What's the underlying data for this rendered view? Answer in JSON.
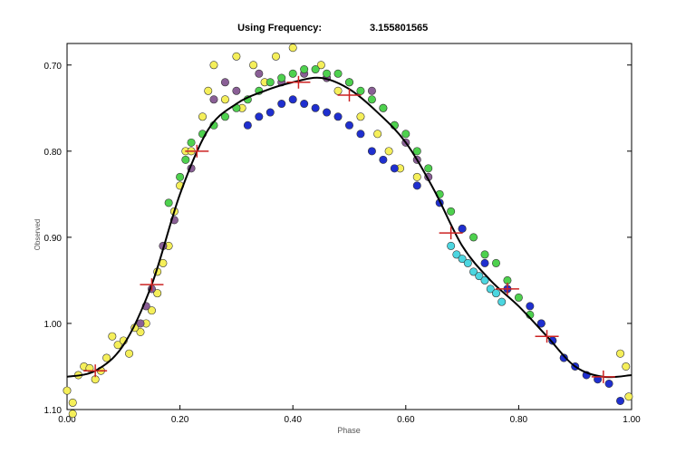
{
  "chart_data": {
    "type": "scatter",
    "title": "Using Frequency:",
    "title_value": "3.155801565",
    "xlabel": "Phase",
    "ylabel": "Observed",
    "xlim": [
      0.0,
      1.0
    ],
    "ylim": [
      1.1,
      0.675
    ],
    "y_inverted": true,
    "grid": false,
    "legend": "none",
    "x_ticks": [
      {
        "value": 0.0,
        "label": "0.00"
      },
      {
        "value": 0.2,
        "label": "0.20"
      },
      {
        "value": 0.4,
        "label": "0.40"
      },
      {
        "value": 0.6,
        "label": "0.60"
      },
      {
        "value": 0.8,
        "label": "0.80"
      },
      {
        "value": 1.0,
        "label": "1.00"
      }
    ],
    "y_ticks": [
      {
        "value": 0.7,
        "label": "0.70"
      },
      {
        "value": 0.8,
        "label": "0.80"
      },
      {
        "value": 0.9,
        "label": "0.90"
      },
      {
        "value": 1.0,
        "label": "1.00"
      },
      {
        "value": 1.1,
        "label": "1.10"
      }
    ],
    "colors": {
      "yellow": "#f5ef5a",
      "purple": "#8a5f96",
      "green": "#4ed14e",
      "blue": "#1f2fcf",
      "cyan": "#4cd6e0",
      "fit": "#000000",
      "markers": "#cc2222"
    },
    "series": [
      {
        "color": "#f5ef5a",
        "points": [
          [
            0.0,
            1.078
          ],
          [
            0.01,
            1.092
          ],
          [
            0.02,
            1.06
          ],
          [
            0.03,
            1.05
          ],
          [
            0.04,
            1.052
          ],
          [
            0.05,
            1.065
          ],
          [
            0.06,
            1.055
          ],
          [
            0.07,
            1.04
          ],
          [
            0.08,
            1.015
          ],
          [
            0.09,
            1.025
          ],
          [
            0.1,
            1.02
          ],
          [
            0.11,
            1.035
          ],
          [
            0.13,
            1.01
          ],
          [
            0.14,
            1.0
          ],
          [
            0.15,
            0.985
          ],
          [
            0.16,
            0.965
          ],
          [
            0.17,
            0.93
          ],
          [
            0.18,
            0.91
          ],
          [
            0.19,
            0.87
          ],
          [
            0.2,
            0.84
          ],
          [
            0.21,
            0.8
          ],
          [
            0.22,
            0.8
          ],
          [
            0.24,
            0.76
          ],
          [
            0.25,
            0.73
          ],
          [
            0.26,
            0.7
          ],
          [
            0.28,
            0.74
          ],
          [
            0.3,
            0.69
          ],
          [
            0.31,
            0.75
          ],
          [
            0.33,
            0.7
          ],
          [
            0.35,
            0.72
          ],
          [
            0.37,
            0.69
          ],
          [
            0.4,
            0.68
          ],
          [
            0.45,
            0.7
          ],
          [
            0.48,
            0.73
          ],
          [
            0.52,
            0.76
          ],
          [
            0.55,
            0.78
          ],
          [
            0.57,
            0.8
          ],
          [
            0.59,
            0.82
          ],
          [
            0.62,
            0.83
          ],
          [
            0.98,
            1.035
          ],
          [
            0.99,
            1.05
          ],
          [
            0.995,
            1.085
          ],
          [
            0.01,
            1.105
          ],
          [
            0.12,
            1.005
          ],
          [
            0.16,
            0.94
          ]
        ]
      },
      {
        "color": "#8a5f96",
        "points": [
          [
            0.13,
            1.0
          ],
          [
            0.14,
            0.98
          ],
          [
            0.15,
            0.96
          ],
          [
            0.17,
            0.91
          ],
          [
            0.19,
            0.88
          ],
          [
            0.22,
            0.82
          ],
          [
            0.26,
            0.74
          ],
          [
            0.28,
            0.72
          ],
          [
            0.3,
            0.73
          ],
          [
            0.34,
            0.71
          ],
          [
            0.38,
            0.72
          ],
          [
            0.42,
            0.71
          ],
          [
            0.46,
            0.715
          ],
          [
            0.5,
            0.72
          ],
          [
            0.54,
            0.73
          ],
          [
            0.56,
            0.75
          ],
          [
            0.58,
            0.77
          ],
          [
            0.6,
            0.79
          ],
          [
            0.62,
            0.81
          ],
          [
            0.64,
            0.83
          ]
        ]
      },
      {
        "color": "#4ed14e",
        "points": [
          [
            0.18,
            0.86
          ],
          [
            0.2,
            0.83
          ],
          [
            0.21,
            0.81
          ],
          [
            0.22,
            0.79
          ],
          [
            0.24,
            0.78
          ],
          [
            0.26,
            0.77
          ],
          [
            0.28,
            0.76
          ],
          [
            0.3,
            0.75
          ],
          [
            0.32,
            0.74
          ],
          [
            0.34,
            0.73
          ],
          [
            0.36,
            0.72
          ],
          [
            0.38,
            0.715
          ],
          [
            0.4,
            0.71
          ],
          [
            0.42,
            0.705
          ],
          [
            0.44,
            0.705
          ],
          [
            0.46,
            0.71
          ],
          [
            0.48,
            0.71
          ],
          [
            0.5,
            0.72
          ],
          [
            0.52,
            0.73
          ],
          [
            0.54,
            0.74
          ],
          [
            0.56,
            0.75
          ],
          [
            0.58,
            0.77
          ],
          [
            0.6,
            0.78
          ],
          [
            0.62,
            0.8
          ],
          [
            0.64,
            0.82
          ],
          [
            0.66,
            0.85
          ],
          [
            0.68,
            0.87
          ],
          [
            0.7,
            0.89
          ],
          [
            0.72,
            0.9
          ],
          [
            0.74,
            0.92
          ],
          [
            0.76,
            0.93
          ],
          [
            0.78,
            0.95
          ],
          [
            0.8,
            0.97
          ],
          [
            0.82,
            0.99
          ],
          [
            0.84,
            1.0
          ],
          [
            0.86,
            1.02
          ],
          [
            0.88,
            1.04
          ]
        ]
      },
      {
        "color": "#1f2fcf",
        "points": [
          [
            0.32,
            0.77
          ],
          [
            0.34,
            0.76
          ],
          [
            0.36,
            0.755
          ],
          [
            0.38,
            0.745
          ],
          [
            0.4,
            0.74
          ],
          [
            0.42,
            0.745
          ],
          [
            0.44,
            0.75
          ],
          [
            0.46,
            0.755
          ],
          [
            0.48,
            0.76
          ],
          [
            0.5,
            0.77
          ],
          [
            0.52,
            0.78
          ],
          [
            0.54,
            0.8
          ],
          [
            0.56,
            0.81
          ],
          [
            0.58,
            0.82
          ],
          [
            0.62,
            0.84
          ],
          [
            0.66,
            0.86
          ],
          [
            0.7,
            0.89
          ],
          [
            0.74,
            0.93
          ],
          [
            0.78,
            0.96
          ],
          [
            0.82,
            0.98
          ],
          [
            0.84,
            1.0
          ],
          [
            0.86,
            1.02
          ],
          [
            0.88,
            1.04
          ],
          [
            0.9,
            1.05
          ],
          [
            0.92,
            1.06
          ],
          [
            0.94,
            1.065
          ],
          [
            0.96,
            1.07
          ],
          [
            0.98,
            1.09
          ]
        ]
      },
      {
        "color": "#4cd6e0",
        "points": [
          [
            0.68,
            0.91
          ],
          [
            0.69,
            0.92
          ],
          [
            0.7,
            0.925
          ],
          [
            0.71,
            0.93
          ],
          [
            0.72,
            0.94
          ],
          [
            0.73,
            0.945
          ],
          [
            0.74,
            0.95
          ],
          [
            0.75,
            0.96
          ],
          [
            0.76,
            0.965
          ],
          [
            0.77,
            0.975
          ]
        ]
      }
    ],
    "fit_curve": [
      [
        0.0,
        1.062
      ],
      [
        0.05,
        1.055
      ],
      [
        0.1,
        1.025
      ],
      [
        0.15,
        0.955
      ],
      [
        0.2,
        0.85
      ],
      [
        0.25,
        0.775
      ],
      [
        0.3,
        0.745
      ],
      [
        0.35,
        0.73
      ],
      [
        0.4,
        0.72
      ],
      [
        0.45,
        0.715
      ],
      [
        0.5,
        0.728
      ],
      [
        0.55,
        0.755
      ],
      [
        0.6,
        0.79
      ],
      [
        0.65,
        0.845
      ],
      [
        0.7,
        0.91
      ],
      [
        0.75,
        0.95
      ],
      [
        0.8,
        0.98
      ],
      [
        0.85,
        1.015
      ],
      [
        0.9,
        1.05
      ],
      [
        0.95,
        1.062
      ],
      [
        1.0,
        1.06
      ]
    ],
    "normal_points": [
      [
        0.05,
        1.055
      ],
      [
        0.15,
        0.955
      ],
      [
        0.23,
        0.8
      ],
      [
        0.41,
        0.72
      ],
      [
        0.5,
        0.735
      ],
      [
        0.68,
        0.895
      ],
      [
        0.78,
        0.96
      ],
      [
        0.85,
        1.015
      ],
      [
        0.95,
        1.062
      ]
    ]
  }
}
